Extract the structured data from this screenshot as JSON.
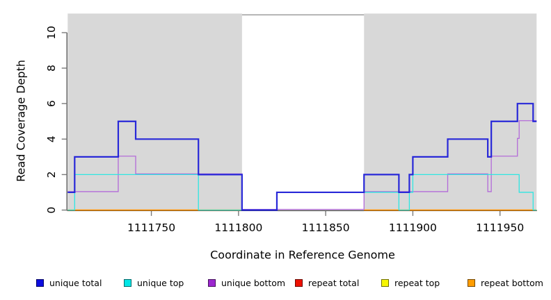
{
  "y_axis": {
    "label": "Read Coverage Depth",
    "ticks": [
      0,
      2,
      4,
      6,
      8,
      10
    ]
  },
  "x_axis": {
    "label": "Coordinate in Reference Genome",
    "ticks": [
      1111750,
      1111800,
      1111850,
      1111900,
      1111950
    ]
  },
  "legend": {
    "items": [
      {
        "label": "unique total",
        "swatch": "#0d0de0"
      },
      {
        "label": "unique top",
        "swatch": "#00e6e6"
      },
      {
        "label": "unique bottom",
        "swatch": "#9c27cf"
      },
      {
        "label": "repeat total",
        "swatch": "#ee1100"
      },
      {
        "label": "repeat top",
        "swatch": "#f7f700"
      },
      {
        "label": "repeat bottom",
        "swatch": "#ff9d00"
      }
    ]
  },
  "colors": {
    "shade": "#d8d8d8",
    "bridge": "#9c9c9c",
    "axis": "#3f3f3f",
    "tick": "#7a7a7a",
    "text": "#000000",
    "plot_bg": "#ffffff"
  },
  "chart_data": {
    "type": "line",
    "step": true,
    "title": "",
    "xlabel": "Coordinate in Reference Genome",
    "ylabel": "Read Coverage Depth",
    "xlim": [
      1111702,
      1111971
    ],
    "ylim": [
      0,
      11.2
    ],
    "x_ticks": [
      1111750,
      1111800,
      1111850,
      1111900,
      1111950
    ],
    "y_ticks": [
      0,
      2,
      4,
      6,
      8,
      10
    ],
    "grid": false,
    "legend_position": "bottom",
    "shaded_regions": [
      [
        1111702,
        1111802
      ],
      [
        1111872,
        1111971
      ]
    ],
    "white_gap": [
      1111802,
      1111872
    ],
    "series": [
      {
        "name": "repeat total",
        "color": "#dd2222",
        "width": 1.1,
        "dy": 0,
        "paths": [
          [
            [
              1111702,
              0
            ],
            [
              1111802,
              0
            ]
          ],
          [
            [
              1111872,
              0
            ],
            [
              1111971,
              0
            ]
          ]
        ]
      },
      {
        "name": "repeat top",
        "color": "#f0f000",
        "width": 1.1,
        "dy": 0,
        "paths": [
          [
            [
              1111702,
              0
            ],
            [
              1111802,
              0
            ]
          ],
          [
            [
              1111872,
              0
            ],
            [
              1111971,
              0
            ]
          ]
        ]
      },
      {
        "name": "repeat bottom",
        "color": "#ff9100",
        "width": 1.7,
        "dy": 0,
        "paths": [
          [
            [
              1111702,
              0
            ],
            [
              1111802,
              0
            ]
          ],
          [
            [
              1111872,
              0
            ],
            [
              1111971,
              0
            ]
          ]
        ]
      },
      {
        "name": "unique bottom",
        "color": "#b36ad9",
        "width": 1.3,
        "dy": -1,
        "paths": [
          [
            [
              1111702,
              1
            ],
            [
              1111731,
              3
            ],
            [
              1111741,
              2
            ],
            [
              1111802,
              0
            ],
            [
              1111872,
              1
            ],
            [
              1111920,
              2
            ],
            [
              1111943,
              1
            ],
            [
              1111945,
              3
            ],
            [
              1111960,
              4
            ],
            [
              1111961,
              5
            ],
            [
              1111971,
              5
            ]
          ]
        ]
      },
      {
        "name": "unique top",
        "color": "#2ee6e2",
        "width": 1.3,
        "dy": 0,
        "paths": [
          [
            [
              1111702,
              0
            ],
            [
              1111706,
              2
            ],
            [
              1111777,
              0
            ],
            [
              1111822,
              1
            ],
            [
              1111892,
              0
            ],
            [
              1111898,
              1
            ],
            [
              1111900,
              2
            ],
            [
              1111961,
              1
            ],
            [
              1111969,
              0
            ],
            [
              1111971,
              0
            ]
          ]
        ]
      },
      {
        "name": "unique total",
        "color": "#2828d8",
        "width": 2.2,
        "dy": 0,
        "paths": [
          [
            [
              1111702,
              1
            ],
            [
              1111706,
              3
            ],
            [
              1111731,
              5
            ],
            [
              1111741,
              4
            ],
            [
              1111777,
              2
            ],
            [
              1111802,
              0
            ],
            [
              1111822,
              1
            ],
            [
              1111872,
              2
            ],
            [
              1111892,
              1
            ],
            [
              1111898,
              2
            ],
            [
              1111900,
              3
            ],
            [
              1111920,
              4
            ],
            [
              1111943,
              3
            ],
            [
              1111945,
              5
            ],
            [
              1111960,
              6
            ],
            [
              1111969,
              5
            ],
            [
              1111971,
              5
            ]
          ]
        ]
      }
    ]
  }
}
